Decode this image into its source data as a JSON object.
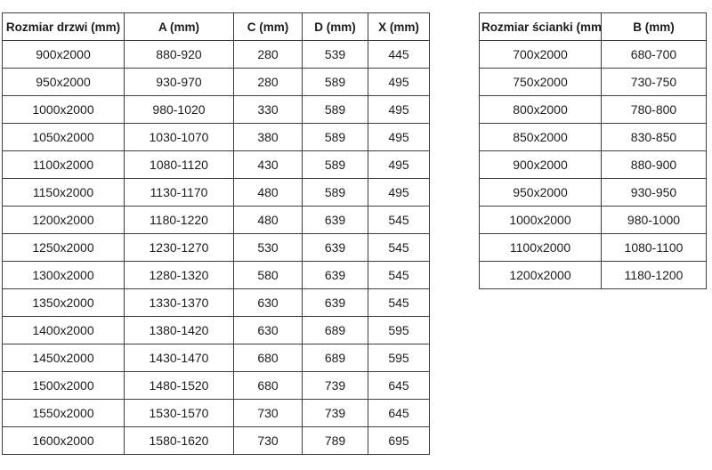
{
  "left_table": {
    "name": "door-size-table",
    "headers": [
      "Rozmiar drzwi (mm)",
      "A (mm)",
      "C (mm)",
      "D (mm)",
      "X (mm)"
    ],
    "rows": [
      [
        "900x2000",
        "880-920",
        "280",
        "539",
        "445"
      ],
      [
        "950x2000",
        "930-970",
        "280",
        "589",
        "495"
      ],
      [
        "1000x2000",
        "980-1020",
        "330",
        "589",
        "495"
      ],
      [
        "1050x2000",
        "1030-1070",
        "380",
        "589",
        "495"
      ],
      [
        "1100x2000",
        "1080-1120",
        "430",
        "589",
        "495"
      ],
      [
        "1150x2000",
        "1130-1170",
        "480",
        "589",
        "495"
      ],
      [
        "1200x2000",
        "1180-1220",
        "480",
        "639",
        "545"
      ],
      [
        "1250x2000",
        "1230-1270",
        "530",
        "639",
        "545"
      ],
      [
        "1300x2000",
        "1280-1320",
        "580",
        "639",
        "545"
      ],
      [
        "1350x2000",
        "1330-1370",
        "630",
        "639",
        "545"
      ],
      [
        "1400x2000",
        "1380-1420",
        "630",
        "689",
        "595"
      ],
      [
        "1450x2000",
        "1430-1470",
        "680",
        "689",
        "595"
      ],
      [
        "1500x2000",
        "1480-1520",
        "680",
        "739",
        "645"
      ],
      [
        "1550x2000",
        "1530-1570",
        "730",
        "739",
        "645"
      ],
      [
        "1600x2000",
        "1580-1620",
        "730",
        "789",
        "695"
      ]
    ]
  },
  "right_table": {
    "name": "wall-size-table",
    "headers": [
      "Rozmiar ścianki (mm)",
      "B (mm)"
    ],
    "rows": [
      [
        "700x2000",
        "680-700"
      ],
      [
        "750x2000",
        "730-750"
      ],
      [
        "800x2000",
        "780-800"
      ],
      [
        "850x2000",
        "830-850"
      ],
      [
        "900x2000",
        "880-900"
      ],
      [
        "950x2000",
        "930-950"
      ],
      [
        "1000x2000",
        "980-1000"
      ],
      [
        "1100x2000",
        "1080-1100"
      ],
      [
        "1200x2000",
        "1180-1200"
      ]
    ]
  },
  "colors": {
    "border": "#3f3f3f",
    "text": "#1c1c1c",
    "background": "#ffffff"
  }
}
